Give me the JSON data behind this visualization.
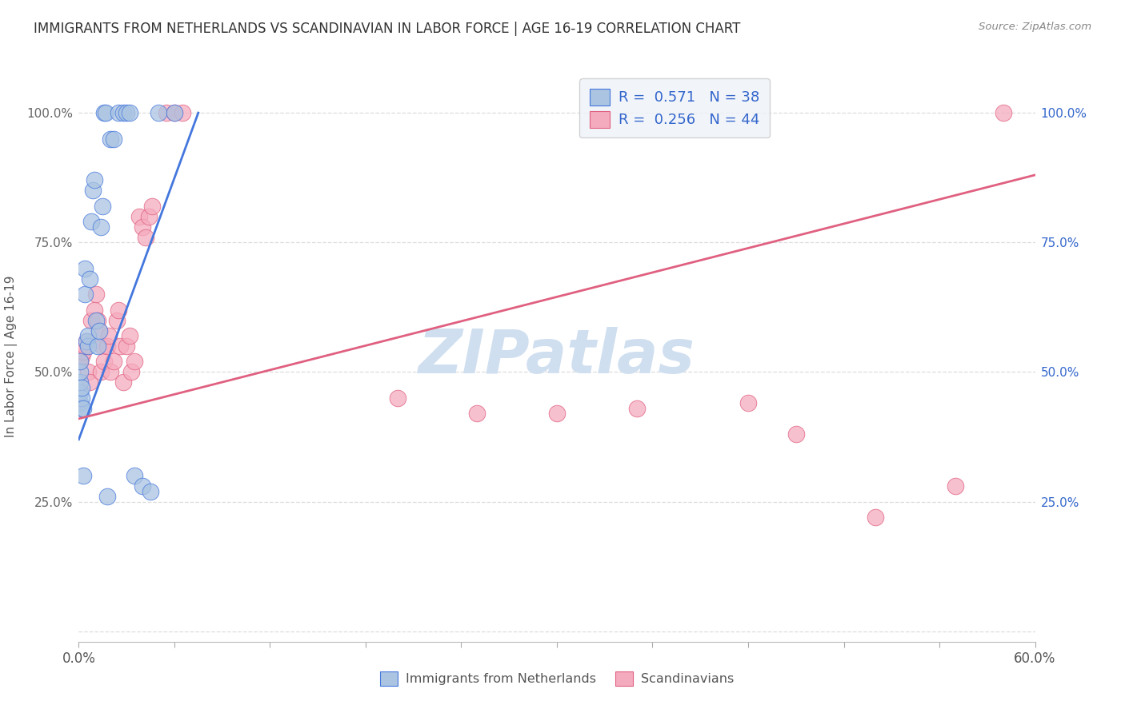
{
  "title": "IMMIGRANTS FROM NETHERLANDS VS SCANDINAVIAN IN LABOR FORCE | AGE 16-19 CORRELATION CHART",
  "source": "Source: ZipAtlas.com",
  "ylabel": "In Labor Force | Age 16-19",
  "xlim": [
    0.0,
    0.6
  ],
  "ylim": [
    -0.02,
    1.08
  ],
  "yticks": [
    0.0,
    0.25,
    0.5,
    0.75,
    1.0
  ],
  "left_ytick_labels": [
    "",
    "25.0%",
    "50.0%",
    "75.0%",
    "100.0%"
  ],
  "right_ytick_labels": [
    "",
    "25.0%",
    "50.0%",
    "75.0%",
    "100.0%"
  ],
  "netherlands_R": 0.571,
  "netherlands_N": 38,
  "scandinavian_R": 0.256,
  "scandinavian_N": 44,
  "netherlands_color": "#aac4e2",
  "scandinavian_color": "#f5abbe",
  "netherlands_line_color": "#4477dd",
  "scandinavian_line_color": "#e06080",
  "legend_facecolor": "#eef2f8",
  "legend_edgecolor": "#c8c8c8",
  "legend_text_color": "#3366cc",
  "title_color": "#333333",
  "source_color": "#888888",
  "watermark_zip": "ZIP",
  "watermark_atlas": "atlas",
  "watermark_color": "#d0dff0",
  "grid_color": "#dddddd",
  "background_color": "#ffffff",
  "netherlands_x": [
    0.001,
    0.001,
    0.001,
    0.001,
    0.001,
    0.002,
    0.002,
    0.002,
    0.003,
    0.003,
    0.004,
    0.004,
    0.005,
    0.006,
    0.006,
    0.007,
    0.008,
    0.009,
    0.01,
    0.011,
    0.012,
    0.013,
    0.014,
    0.015,
    0.016,
    0.017,
    0.018,
    0.02,
    0.022,
    0.025,
    0.028,
    0.03,
    0.032,
    0.035,
    0.04,
    0.045,
    0.05,
    0.06
  ],
  "netherlands_y": [
    0.44,
    0.46,
    0.48,
    0.5,
    0.52,
    0.43,
    0.45,
    0.47,
    0.43,
    0.3,
    0.65,
    0.7,
    0.56,
    0.55,
    0.57,
    0.68,
    0.79,
    0.85,
    0.87,
    0.6,
    0.55,
    0.58,
    0.78,
    0.82,
    1.0,
    1.0,
    0.26,
    0.95,
    0.95,
    1.0,
    1.0,
    1.0,
    1.0,
    0.3,
    0.28,
    0.27,
    1.0,
    1.0
  ],
  "scandinavian_x": [
    0.001,
    0.002,
    0.003,
    0.004,
    0.005,
    0.006,
    0.007,
    0.008,
    0.01,
    0.011,
    0.012,
    0.013,
    0.014,
    0.015,
    0.016,
    0.018,
    0.019,
    0.02,
    0.022,
    0.024,
    0.025,
    0.026,
    0.028,
    0.03,
    0.032,
    0.033,
    0.035,
    0.038,
    0.04,
    0.042,
    0.044,
    0.046,
    0.055,
    0.06,
    0.065,
    0.2,
    0.25,
    0.3,
    0.35,
    0.42,
    0.45,
    0.5,
    0.55,
    0.58
  ],
  "scandinavian_y": [
    0.52,
    0.53,
    0.54,
    0.55,
    0.56,
    0.5,
    0.48,
    0.6,
    0.62,
    0.65,
    0.6,
    0.58,
    0.5,
    0.55,
    0.52,
    0.55,
    0.57,
    0.5,
    0.52,
    0.6,
    0.62,
    0.55,
    0.48,
    0.55,
    0.57,
    0.5,
    0.52,
    0.8,
    0.78,
    0.76,
    0.8,
    0.82,
    1.0,
    1.0,
    1.0,
    0.45,
    0.42,
    0.42,
    0.43,
    0.44,
    0.38,
    0.22,
    0.28,
    1.0
  ],
  "netherlands_line_x0": 0.0,
  "netherlands_line_y0": 0.37,
  "netherlands_line_x1": 0.075,
  "netherlands_line_y1": 1.0,
  "scandinavian_line_x0": 0.0,
  "scandinavian_line_y0": 0.41,
  "scandinavian_line_x1": 0.6,
  "scandinavian_line_y1": 0.88
}
